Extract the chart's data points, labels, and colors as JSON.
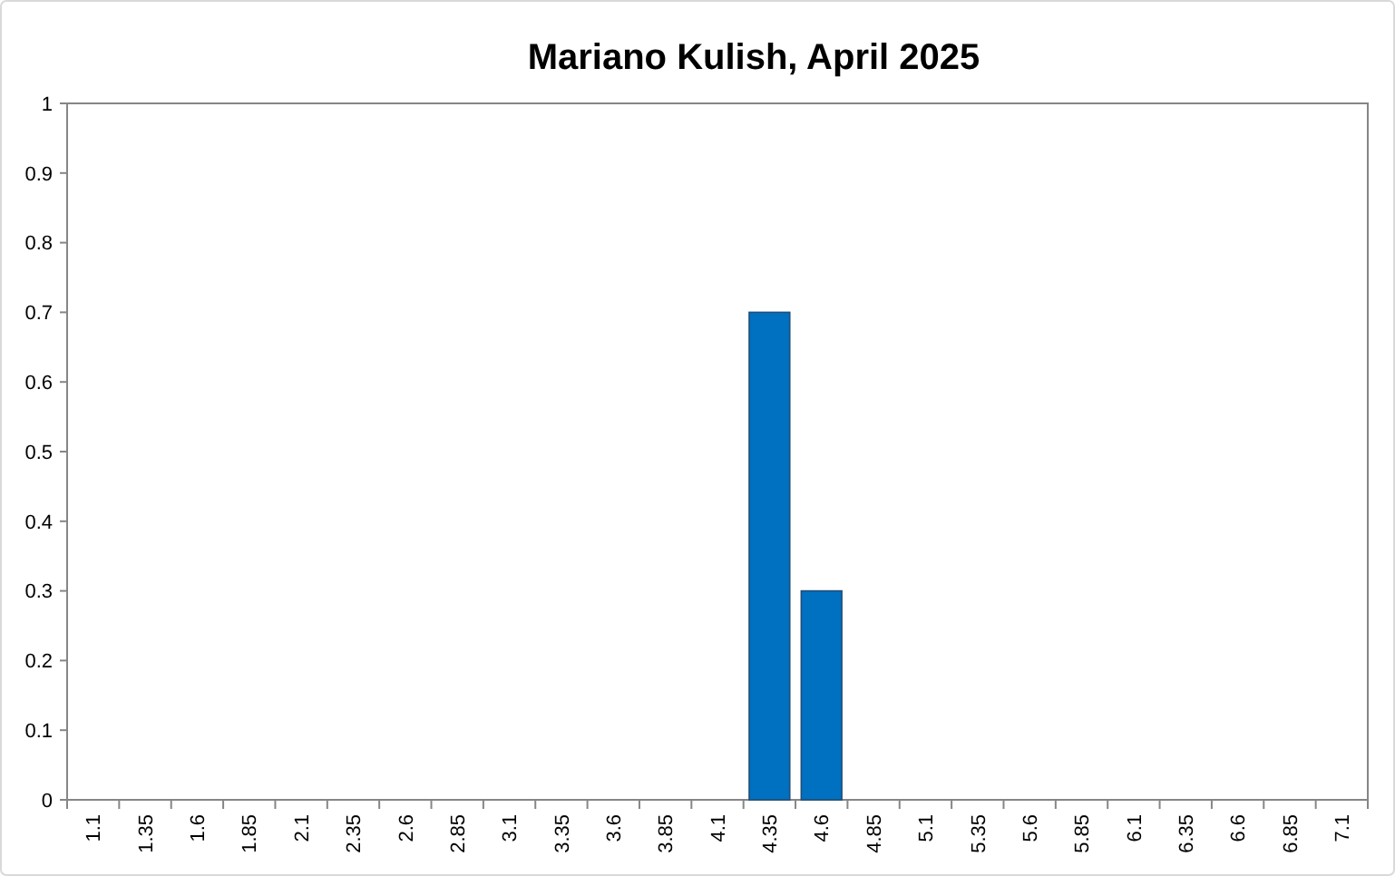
{
  "chart_data": {
    "type": "bar",
    "title": "Mariano Kulish, April 2025",
    "categories": [
      "1.1",
      "1.35",
      "1.6",
      "1.85",
      "2.1",
      "2.35",
      "2.6",
      "2.85",
      "3.1",
      "3.35",
      "3.6",
      "3.85",
      "4.1",
      "4.35",
      "4.6",
      "4.85",
      "5.1",
      "5.35",
      "5.6",
      "5.85",
      "6.1",
      "6.35",
      "6.6",
      "6.85",
      "7.1"
    ],
    "values": [
      0,
      0,
      0,
      0,
      0,
      0,
      0,
      0,
      0,
      0,
      0,
      0,
      0,
      0.7,
      0.3,
      0,
      0,
      0,
      0,
      0,
      0,
      0,
      0,
      0,
      0
    ],
    "color": "#0070c0",
    "ylim": [
      0,
      1
    ],
    "yticks": [
      0,
      0.1,
      0.2,
      0.3,
      0.4,
      0.5,
      0.6,
      0.7,
      0.8,
      0.9,
      1
    ],
    "grid": false
  }
}
